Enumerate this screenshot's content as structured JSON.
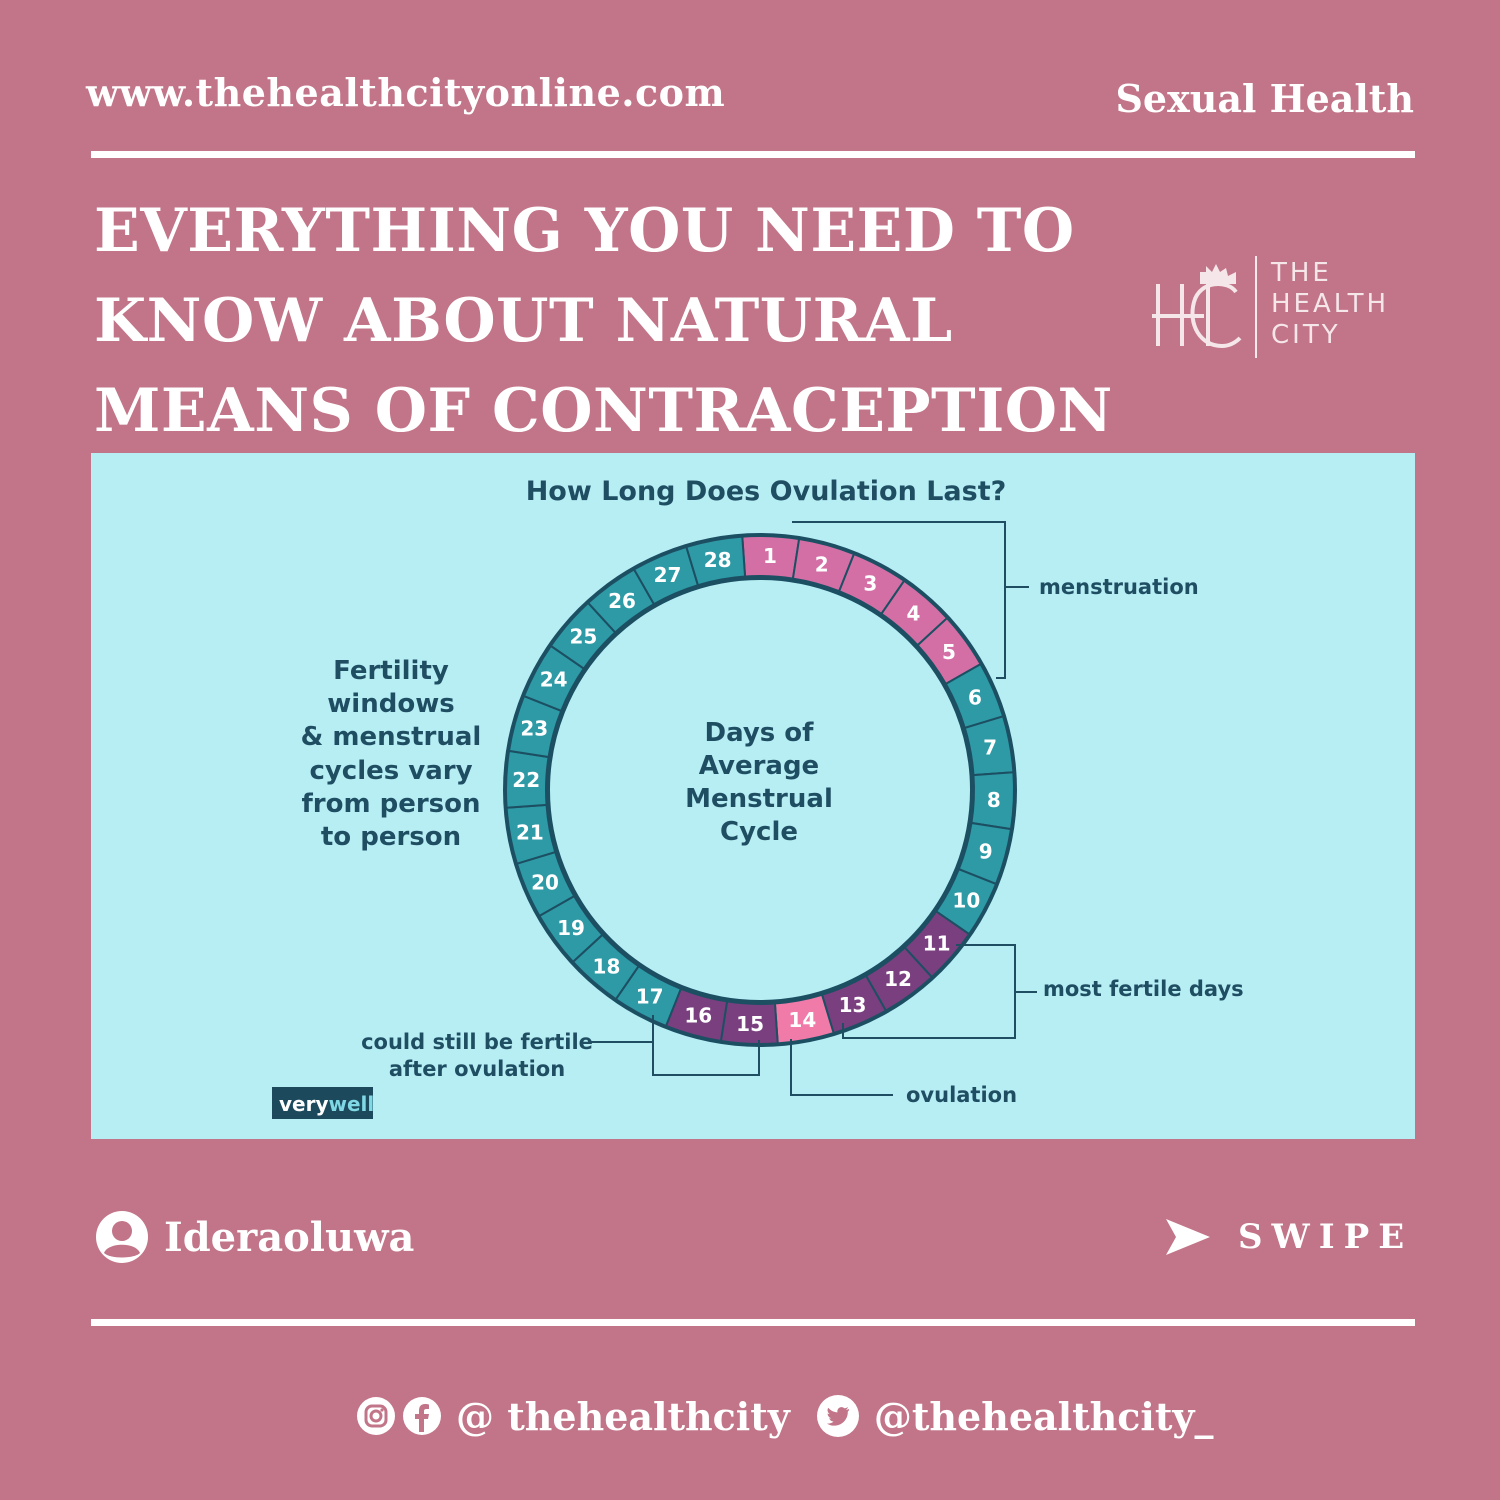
{
  "header": {
    "site_url": "www.thehealthcityonline.com",
    "category": "Sexual Health"
  },
  "headline": {
    "lines": [
      "EVERYTHING YOU NEED TO",
      "KNOW ABOUT NATURAL",
      "MEANS OF CONTRACEPTION"
    ]
  },
  "logo": {
    "lines": [
      "THE",
      "HEALTH",
      "CITY"
    ]
  },
  "diagram": {
    "title": "How Long Does Ovulation Last?",
    "center_lines": [
      "Days of",
      "Average",
      "Menstrual",
      "Cycle"
    ],
    "side_note_lines": [
      "Fertility",
      "windows",
      "& menstrual",
      "cycles vary",
      "from person",
      "to person"
    ],
    "days": [
      {
        "day": "1",
        "phase": "menstruation"
      },
      {
        "day": "2",
        "phase": "menstruation"
      },
      {
        "day": "3",
        "phase": "menstruation"
      },
      {
        "day": "4",
        "phase": "menstruation"
      },
      {
        "day": "5",
        "phase": "menstruation"
      },
      {
        "day": "6",
        "phase": "normal"
      },
      {
        "day": "7",
        "phase": "normal"
      },
      {
        "day": "8",
        "phase": "normal"
      },
      {
        "day": "9",
        "phase": "normal"
      },
      {
        "day": "10",
        "phase": "normal"
      },
      {
        "day": "11",
        "phase": "fertile"
      },
      {
        "day": "12",
        "phase": "fertile"
      },
      {
        "day": "13",
        "phase": "fertile"
      },
      {
        "day": "14",
        "phase": "ovulation"
      },
      {
        "day": "15",
        "phase": "fertile"
      },
      {
        "day": "16",
        "phase": "fertile"
      },
      {
        "day": "17",
        "phase": "normal"
      },
      {
        "day": "18",
        "phase": "normal"
      },
      {
        "day": "19",
        "phase": "normal"
      },
      {
        "day": "20",
        "phase": "normal"
      },
      {
        "day": "21",
        "phase": "normal"
      },
      {
        "day": "22",
        "phase": "normal"
      },
      {
        "day": "23",
        "phase": "normal"
      },
      {
        "day": "24",
        "phase": "normal"
      },
      {
        "day": "25",
        "phase": "normal"
      },
      {
        "day": "26",
        "phase": "normal"
      },
      {
        "day": "27",
        "phase": "normal"
      },
      {
        "day": "28",
        "phase": "normal"
      }
    ],
    "phase_colors": {
      "menstruation": "#d46fa6",
      "normal": "#2d9aa6",
      "fertile": "#7a3f7f",
      "ovulation": "#f07aa8"
    },
    "labels": {
      "menstruation": "menstruation",
      "most_fertile": "most fertile days",
      "ovulation": "ovulation",
      "after_ovulation_lines": [
        "could still be fertile",
        "after ovulation"
      ]
    },
    "source_badge": {
      "part1": "very",
      "part2": "well"
    }
  },
  "author": {
    "name": "Ideraoluwa"
  },
  "swipe": {
    "label": "SWIPE"
  },
  "socials": {
    "instagram_facebook_handle": "@ thehealthcity",
    "twitter_handle": "@thehealthcity_"
  },
  "colors": {
    "background": "#c27488",
    "panel": "#b6eef4",
    "ring_outline": "#1d4f63",
    "diagram_text": "#1f4e63"
  }
}
